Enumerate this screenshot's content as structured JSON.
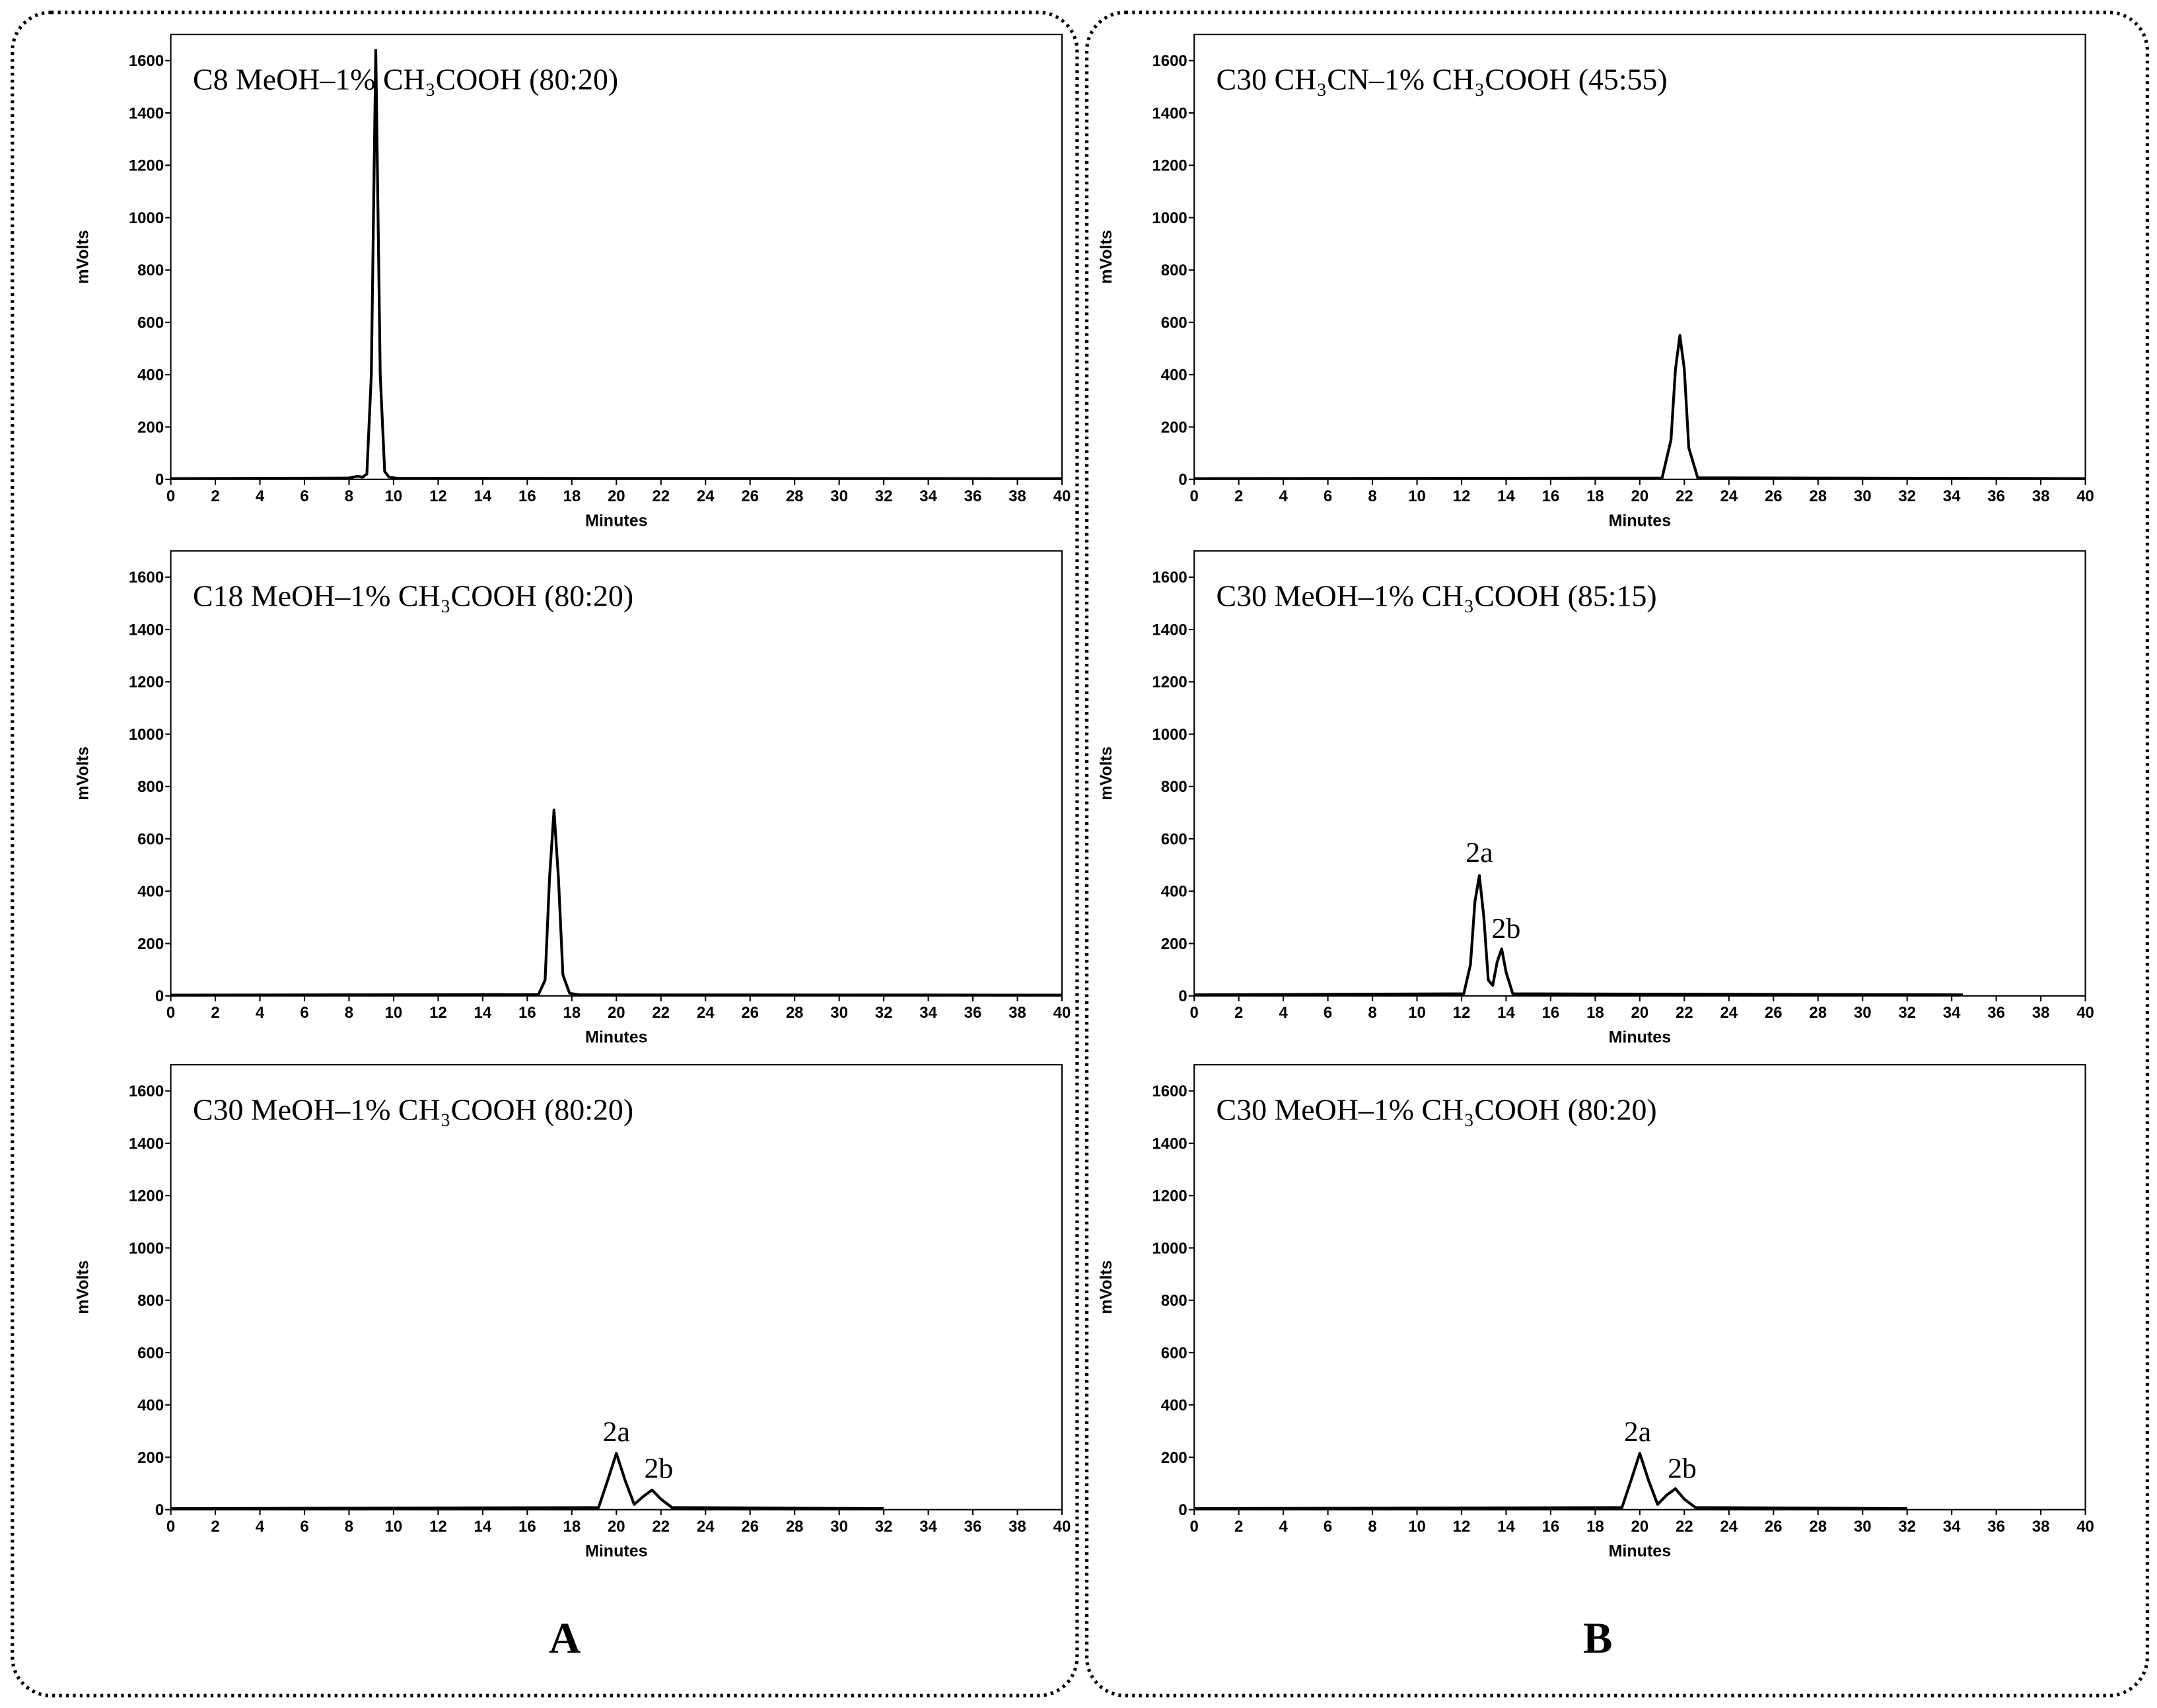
{
  "panel_labels": [
    "A",
    "B"
  ],
  "chart_data": [
    {
      "type": "line",
      "title": "C8 MeOH–1% CH₃COOH (80:20)",
      "xlabel": "Minutes",
      "ylabel": "mVolts",
      "color": "#000000",
      "x": [
        0,
        8.0,
        8.4,
        8.6,
        8.8,
        9.0,
        9.2,
        9.4,
        9.6,
        9.8,
        10.2,
        40
      ],
      "values": [
        3,
        5,
        12,
        8,
        20,
        400,
        1640,
        400,
        30,
        8,
        4,
        3
      ],
      "xlim": [
        0,
        40
      ],
      "xticks": [
        0,
        2,
        4,
        6,
        8,
        10,
        12,
        14,
        16,
        18,
        20,
        22,
        24,
        26,
        28,
        30,
        32,
        34,
        36,
        38,
        40
      ],
      "ylim": [
        0,
        1700
      ],
      "yticks": [
        0,
        200,
        400,
        600,
        800,
        1000,
        1200,
        1400,
        1600
      ],
      "annotations": []
    },
    {
      "type": "line",
      "title": "C18 MeOH–1% CH₃COOH (80:20)",
      "xlabel": "Minutes",
      "ylabel": "mVolts",
      "color": "#000000",
      "x": [
        0,
        16.5,
        16.8,
        17.0,
        17.2,
        17.4,
        17.6,
        17.9,
        18.3,
        40
      ],
      "values": [
        3,
        5,
        60,
        450,
        710,
        450,
        80,
        10,
        4,
        3
      ],
      "xlim": [
        0,
        40
      ],
      "xticks": [
        0,
        2,
        4,
        6,
        8,
        10,
        12,
        14,
        16,
        18,
        20,
        22,
        24,
        26,
        28,
        30,
        32,
        34,
        36,
        38,
        40
      ],
      "ylim": [
        0,
        1700
      ],
      "yticks": [
        0,
        200,
        400,
        600,
        800,
        1000,
        1200,
        1400,
        1600
      ],
      "annotations": []
    },
    {
      "type": "line",
      "title": "C30 MeOH–1% CH₃COOH (80:20)",
      "xlabel": "Minutes",
      "ylabel": "mVolts",
      "color": "#000000",
      "x": [
        0,
        19.2,
        19.6,
        20.0,
        20.4,
        20.8,
        21.2,
        21.6,
        22.0,
        22.5,
        32
      ],
      "values": [
        4,
        8,
        110,
        215,
        110,
        20,
        50,
        75,
        40,
        8,
        4
      ],
      "xlim": [
        0,
        40
      ],
      "xticks": [
        0,
        2,
        4,
        6,
        8,
        10,
        12,
        14,
        16,
        18,
        20,
        22,
        24,
        26,
        28,
        30,
        32,
        34,
        36,
        38,
        40
      ],
      "ylim": [
        0,
        1700
      ],
      "yticks": [
        0,
        200,
        400,
        600,
        800,
        1000,
        1200,
        1400,
        1600
      ],
      "annotations": [
        {
          "text": "2a",
          "x": 20.0,
          "y": 230
        },
        {
          "text": "2b",
          "x": 21.9,
          "y": 90
        }
      ]
    },
    {
      "type": "line",
      "title": "C30 CH₃CN–1% CH₃COOH (45:55)",
      "xlabel": "Minutes",
      "ylabel": "mVolts",
      "color": "#000000",
      "x": [
        0,
        21.0,
        21.4,
        21.6,
        21.8,
        22.0,
        22.2,
        22.6,
        40
      ],
      "values": [
        3,
        5,
        150,
        420,
        550,
        420,
        120,
        6,
        3
      ],
      "xlim": [
        0,
        40
      ],
      "xticks": [
        0,
        2,
        4,
        6,
        8,
        10,
        12,
        14,
        16,
        18,
        20,
        22,
        24,
        26,
        28,
        30,
        32,
        34,
        36,
        38,
        40
      ],
      "ylim": [
        0,
        1700
      ],
      "yticks": [
        0,
        200,
        400,
        600,
        800,
        1000,
        1200,
        1400,
        1600
      ],
      "annotations": []
    },
    {
      "type": "line",
      "title": "C30 MeOH–1% CH₃COOH (85:15)",
      "xlabel": "Minutes",
      "ylabel": "mVolts",
      "color": "#000000",
      "x": [
        0,
        12.1,
        12.4,
        12.6,
        12.8,
        13.0,
        13.2,
        13.4,
        13.6,
        13.8,
        14.0,
        14.3,
        34.5
      ],
      "values": [
        4,
        8,
        120,
        360,
        460,
        300,
        60,
        40,
        130,
        180,
        90,
        8,
        4
      ],
      "xlim": [
        0,
        40
      ],
      "xticks": [
        0,
        2,
        4,
        6,
        8,
        10,
        12,
        14,
        16,
        18,
        20,
        22,
        24,
        26,
        28,
        30,
        32,
        34,
        36,
        38,
        40
      ],
      "ylim": [
        0,
        1700
      ],
      "yticks": [
        0,
        200,
        400,
        600,
        800,
        1000,
        1200,
        1400,
        1600
      ],
      "annotations": [
        {
          "text": "2a",
          "x": 12.8,
          "y": 480
        },
        {
          "text": "2b",
          "x": 14.0,
          "y": 190
        }
      ]
    },
    {
      "type": "line",
      "title": "C30 MeOH–1% CH₃COOH (80:20)",
      "xlabel": "Minutes",
      "ylabel": "mVolts",
      "color": "#000000",
      "x": [
        0,
        19.2,
        19.6,
        20.0,
        20.4,
        20.8,
        21.2,
        21.6,
        22.0,
        22.5,
        32
      ],
      "values": [
        4,
        8,
        110,
        215,
        110,
        20,
        55,
        80,
        40,
        8,
        4
      ],
      "xlim": [
        0,
        40
      ],
      "xticks": [
        0,
        2,
        4,
        6,
        8,
        10,
        12,
        14,
        16,
        18,
        20,
        22,
        24,
        26,
        28,
        30,
        32,
        34,
        36,
        38,
        40
      ],
      "ylim": [
        0,
        1700
      ],
      "yticks": [
        0,
        200,
        400,
        600,
        800,
        1000,
        1200,
        1400,
        1600
      ],
      "annotations": [
        {
          "text": "2a",
          "x": 19.9,
          "y": 230
        },
        {
          "text": "2b",
          "x": 21.9,
          "y": 90
        }
      ]
    }
  ]
}
